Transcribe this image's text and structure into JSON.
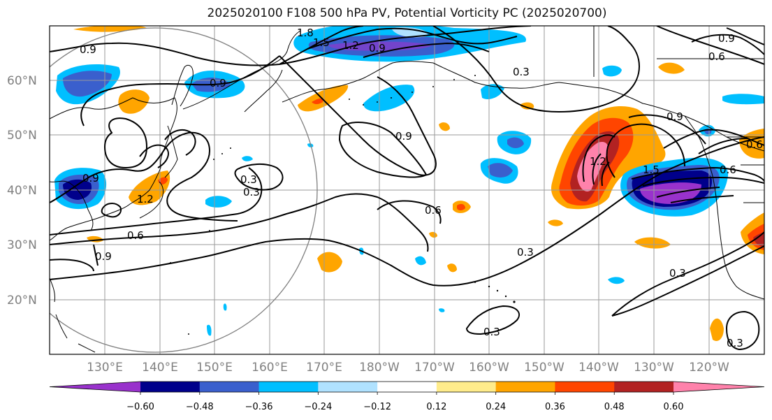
{
  "title": "2025020100 F108 500 hPa PV, Potential Vorticity PC (2025020700)",
  "lat_labels": [
    "60°N",
    "50°N",
    "40°N",
    "30°N",
    "20°N"
  ],
  "lon_labels": [
    "130°E",
    "140°E",
    "150°E",
    "160°E",
    "170°E",
    "180°W",
    "170°W",
    "160°W",
    "150°W",
    "140°W",
    "130°W",
    "120°W"
  ],
  "contour_labels": [
    "1.8",
    "1.5",
    "1.2",
    "0.9",
    "0.9",
    "0.3",
    "0.9",
    "0.6",
    "0.9",
    "0.9",
    "0.3",
    "0.9",
    "0.9",
    "1.2",
    "1.2",
    "0.6",
    "0.9",
    "0.6",
    "0.6",
    "0.3",
    "0.3",
    "0.3",
    "0.3",
    "1.5",
    "0.6",
    "0.3"
  ],
  "colorbar": {
    "colors": [
      "#9932CC",
      "#00008B",
      "#3A5FCD",
      "#00BFFF",
      "#B0E2FF",
      "#FFFFFF",
      "#FFEC8B",
      "#FFA500",
      "#FF4500",
      "#B22222",
      "#FF82AB"
    ],
    "ticks": [
      "−0.60",
      "−0.48",
      "−0.36",
      "−0.24",
      "−0.12",
      "0.12",
      "0.24",
      "0.36",
      "0.48",
      "0.60"
    ]
  }
}
